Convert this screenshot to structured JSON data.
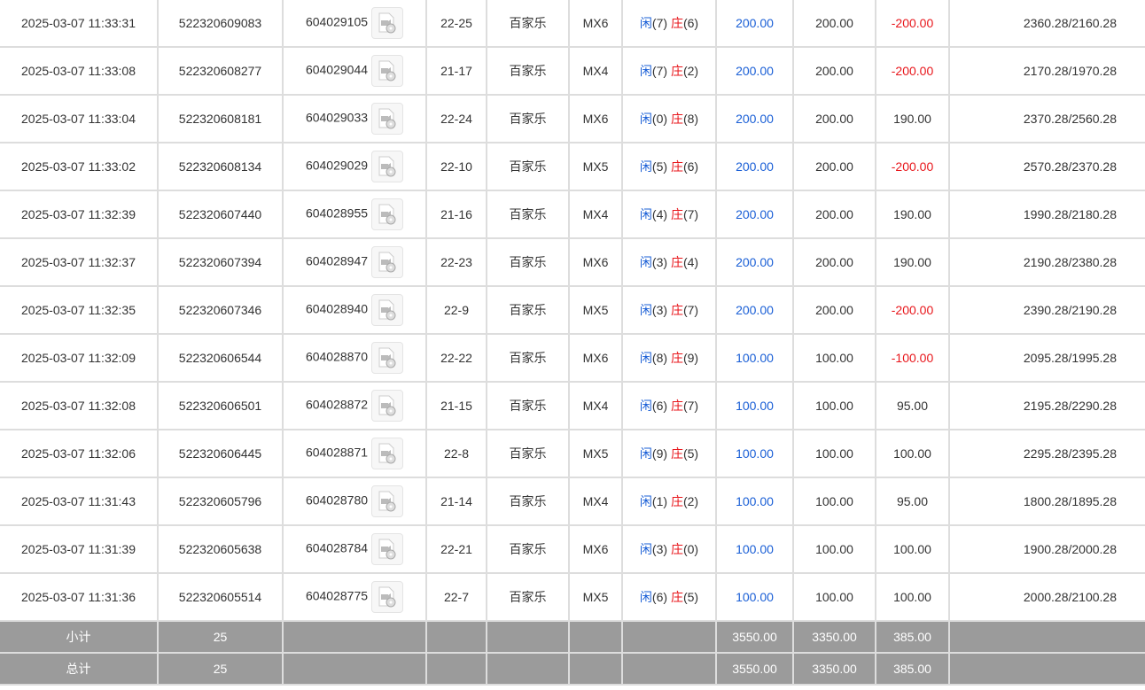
{
  "colors": {
    "player": "#1a5fd6",
    "banker": "#e8161b",
    "negative": "#e8161b",
    "bet": "#1a5fd6",
    "summary_bg": "#9b9b9b"
  },
  "rows": [
    {
      "time": "2025-03-07 11:33:31",
      "order": "522320609083",
      "round": "604029105",
      "shoe": "22-25",
      "game": "百家乐",
      "table": "MX6",
      "p_label": "闲",
      "p": "(7)",
      "b_label": "庄",
      "b": "(6)",
      "bet": "200.00",
      "valid": "200.00",
      "win": "-200.00",
      "neg": true,
      "balance": "2360.28/2160.28"
    },
    {
      "time": "2025-03-07 11:33:08",
      "order": "522320608277",
      "round": "604029044",
      "shoe": "21-17",
      "game": "百家乐",
      "table": "MX4",
      "p_label": "闲",
      "p": "(7)",
      "b_label": "庄",
      "b": "(2)",
      "bet": "200.00",
      "valid": "200.00",
      "win": "-200.00",
      "neg": true,
      "balance": "2170.28/1970.28"
    },
    {
      "time": "2025-03-07 11:33:04",
      "order": "522320608181",
      "round": "604029033",
      "shoe": "22-24",
      "game": "百家乐",
      "table": "MX6",
      "p_label": "闲",
      "p": "(0)",
      "b_label": "庄",
      "b": "(8)",
      "bet": "200.00",
      "valid": "200.00",
      "win": "190.00",
      "neg": false,
      "balance": "2370.28/2560.28"
    },
    {
      "time": "2025-03-07 11:33:02",
      "order": "522320608134",
      "round": "604029029",
      "shoe": "22-10",
      "game": "百家乐",
      "table": "MX5",
      "p_label": "闲",
      "p": "(5)",
      "b_label": "庄",
      "b": "(6)",
      "bet": "200.00",
      "valid": "200.00",
      "win": "-200.00",
      "neg": true,
      "balance": "2570.28/2370.28"
    },
    {
      "time": "2025-03-07 11:32:39",
      "order": "522320607440",
      "round": "604028955",
      "shoe": "21-16",
      "game": "百家乐",
      "table": "MX4",
      "p_label": "闲",
      "p": "(4)",
      "b_label": "庄",
      "b": "(7)",
      "bet": "200.00",
      "valid": "200.00",
      "win": "190.00",
      "neg": false,
      "balance": "1990.28/2180.28"
    },
    {
      "time": "2025-03-07 11:32:37",
      "order": "522320607394",
      "round": "604028947",
      "shoe": "22-23",
      "game": "百家乐",
      "table": "MX6",
      "p_label": "闲",
      "p": "(3)",
      "b_label": "庄",
      "b": "(4)",
      "bet": "200.00",
      "valid": "200.00",
      "win": "190.00",
      "neg": false,
      "balance": "2190.28/2380.28"
    },
    {
      "time": "2025-03-07 11:32:35",
      "order": "522320607346",
      "round": "604028940",
      "shoe": "22-9",
      "game": "百家乐",
      "table": "MX5",
      "p_label": "闲",
      "p": "(3)",
      "b_label": "庄",
      "b": "(7)",
      "bet": "200.00",
      "valid": "200.00",
      "win": "-200.00",
      "neg": true,
      "balance": "2390.28/2190.28"
    },
    {
      "time": "2025-03-07 11:32:09",
      "order": "522320606544",
      "round": "604028870",
      "shoe": "22-22",
      "game": "百家乐",
      "table": "MX6",
      "p_label": "闲",
      "p": "(8)",
      "b_label": "庄",
      "b": "(9)",
      "bet": "100.00",
      "valid": "100.00",
      "win": "-100.00",
      "neg": true,
      "balance": "2095.28/1995.28"
    },
    {
      "time": "2025-03-07 11:32:08",
      "order": "522320606501",
      "round": "604028872",
      "shoe": "21-15",
      "game": "百家乐",
      "table": "MX4",
      "p_label": "闲",
      "p": "(6)",
      "b_label": "庄",
      "b": "(7)",
      "bet": "100.00",
      "valid": "100.00",
      "win": "95.00",
      "neg": false,
      "balance": "2195.28/2290.28"
    },
    {
      "time": "2025-03-07 11:32:06",
      "order": "522320606445",
      "round": "604028871",
      "shoe": "22-8",
      "game": "百家乐",
      "table": "MX5",
      "p_label": "闲",
      "p": "(9)",
      "b_label": "庄",
      "b": "(5)",
      "bet": "100.00",
      "valid": "100.00",
      "win": "100.00",
      "neg": false,
      "balance": "2295.28/2395.28"
    },
    {
      "time": "2025-03-07 11:31:43",
      "order": "522320605796",
      "round": "604028780",
      "shoe": "21-14",
      "game": "百家乐",
      "table": "MX4",
      "p_label": "闲",
      "p": "(1)",
      "b_label": "庄",
      "b": "(2)",
      "bet": "100.00",
      "valid": "100.00",
      "win": "95.00",
      "neg": false,
      "balance": "1800.28/1895.28"
    },
    {
      "time": "2025-03-07 11:31:39",
      "order": "522320605638",
      "round": "604028784",
      "shoe": "22-21",
      "game": "百家乐",
      "table": "MX6",
      "p_label": "闲",
      "p": "(3)",
      "b_label": "庄",
      "b": "(0)",
      "bet": "100.00",
      "valid": "100.00",
      "win": "100.00",
      "neg": false,
      "balance": "1900.28/2000.28"
    },
    {
      "time": "2025-03-07 11:31:36",
      "order": "522320605514",
      "round": "604028775",
      "shoe": "22-7",
      "game": "百家乐",
      "table": "MX5",
      "p_label": "闲",
      "p": "(6)",
      "b_label": "庄",
      "b": "(5)",
      "bet": "100.00",
      "valid": "100.00",
      "win": "100.00",
      "neg": false,
      "balance": "2000.28/2100.28"
    }
  ],
  "subtotal": {
    "label": "小计",
    "count": "25",
    "bet": "3550.00",
    "valid": "3350.00",
    "win": "385.00"
  },
  "total": {
    "label": "总计",
    "count": "25",
    "bet": "3550.00",
    "valid": "3350.00",
    "win": "385.00"
  }
}
